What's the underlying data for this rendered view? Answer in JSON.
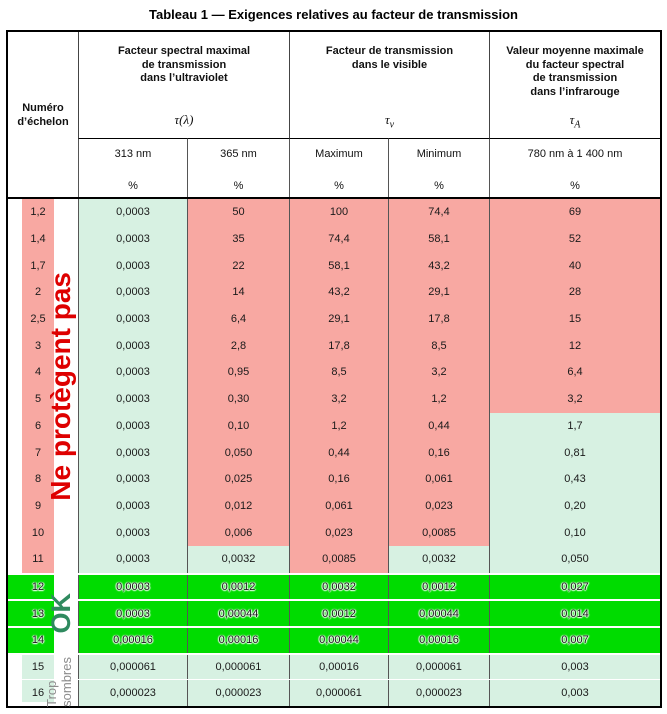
{
  "page": {
    "title": "Tableau 1 — Exigences relatives au facteur de transmission"
  },
  "colors": {
    "pink": "#F8A8A2",
    "mint": "#D7F1E2",
    "green": "#00DC00",
    "warn_text": "#DE0000",
    "ok_text": "#2F8A5F",
    "muted_text": "#8C8C8C"
  },
  "header": {
    "row_label": "Numéro d’échelon",
    "groups": [
      {
        "lines": [
          "Facteur spectral maximal",
          "de transmission",
          "dans l’ultraviolet"
        ],
        "symbol_base": "τ(λ)",
        "symbol_sub": ""
      },
      {
        "lines": [
          "Facteur de transmission",
          "dans le visible"
        ],
        "symbol_base": "τ",
        "symbol_sub": "v"
      },
      {
        "lines": [
          "Valeur moyenne maximale",
          "du facteur spectral",
          "de transmission",
          "dans l’infrarouge"
        ],
        "symbol_base": "τ",
        "symbol_sub": "A"
      }
    ],
    "subcolumns": [
      {
        "label": "313 nm",
        "unit": "%"
      },
      {
        "label": "365 nm",
        "unit": "%"
      },
      {
        "label": "Maximum",
        "unit": "%"
      },
      {
        "label": "Minimum",
        "unit": "%"
      },
      {
        "label": "780 nm à 1 400 nm",
        "unit": "%"
      }
    ]
  },
  "rows": [
    {
      "num": "1,2",
      "values": [
        "0,0003",
        "50",
        "100",
        "74,4",
        "69"
      ],
      "colors": [
        "P",
        "M",
        "P",
        "P",
        "P",
        "P"
      ]
    },
    {
      "num": "1,4",
      "values": [
        "0,0003",
        "35",
        "74,4",
        "58,1",
        "52"
      ],
      "colors": [
        "P",
        "M",
        "P",
        "P",
        "P",
        "P"
      ]
    },
    {
      "num": "1,7",
      "values": [
        "0,0003",
        "22",
        "58,1",
        "43,2",
        "40"
      ],
      "colors": [
        "P",
        "M",
        "P",
        "P",
        "P",
        "P"
      ]
    },
    {
      "num": "2",
      "values": [
        "0,0003",
        "14",
        "43,2",
        "29,1",
        "28"
      ],
      "colors": [
        "P",
        "M",
        "P",
        "P",
        "P",
        "P"
      ]
    },
    {
      "num": "2,5",
      "values": [
        "0,0003",
        "6,4",
        "29,1",
        "17,8",
        "15"
      ],
      "colors": [
        "P",
        "M",
        "P",
        "P",
        "P",
        "P"
      ]
    },
    {
      "num": "3",
      "values": [
        "0,0003",
        "2,8",
        "17,8",
        "8,5",
        "12"
      ],
      "colors": [
        "P",
        "M",
        "P",
        "P",
        "P",
        "P"
      ]
    },
    {
      "num": "4",
      "values": [
        "0,0003",
        "0,95",
        "8,5",
        "3,2",
        "6,4"
      ],
      "colors": [
        "P",
        "M",
        "P",
        "P",
        "P",
        "P"
      ]
    },
    {
      "num": "5",
      "values": [
        "0,0003",
        "0,30",
        "3,2",
        "1,2",
        "3,2"
      ],
      "colors": [
        "P",
        "M",
        "P",
        "P",
        "P",
        "P"
      ]
    },
    {
      "num": "6",
      "values": [
        "0,0003",
        "0,10",
        "1,2",
        "0,44",
        "1,7"
      ],
      "colors": [
        "P",
        "M",
        "P",
        "P",
        "P",
        "M"
      ]
    },
    {
      "num": "7",
      "values": [
        "0,0003",
        "0,050",
        "0,44",
        "0,16",
        "0,81"
      ],
      "colors": [
        "P",
        "M",
        "P",
        "P",
        "P",
        "M"
      ]
    },
    {
      "num": "8",
      "values": [
        "0,0003",
        "0,025",
        "0,16",
        "0,061",
        "0,43"
      ],
      "colors": [
        "P",
        "M",
        "P",
        "P",
        "P",
        "M"
      ]
    },
    {
      "num": "9",
      "values": [
        "0,0003",
        "0,012",
        "0,061",
        "0,023",
        "0,20"
      ],
      "colors": [
        "P",
        "M",
        "P",
        "P",
        "P",
        "M"
      ]
    },
    {
      "num": "10",
      "values": [
        "0,0003",
        "0,006",
        "0,023",
        "0,0085",
        "0,10"
      ],
      "colors": [
        "P",
        "M",
        "P",
        "P",
        "P",
        "M"
      ]
    },
    {
      "num": "11",
      "values": [
        "0,0003",
        "0,0032",
        "0,0085",
        "0,0032",
        "0,050"
      ],
      "colors": [
        "P",
        "M",
        "M",
        "P",
        "M",
        "M"
      ]
    },
    {
      "num": "12",
      "values": [
        "0,0003",
        "0,0012",
        "0,0032",
        "0,0012",
        "0,027"
      ],
      "colors": [
        "G",
        "G",
        "G",
        "G",
        "G",
        "G"
      ]
    },
    {
      "num": "13",
      "values": [
        "0,0003",
        "0,00044",
        "0,0012",
        "0,00044",
        "0,014"
      ],
      "colors": [
        "G",
        "G",
        "G",
        "G",
        "G",
        "G"
      ]
    },
    {
      "num": "14",
      "values": [
        "0,00016",
        "0,00016",
        "0,00044",
        "0,00016",
        "0,007"
      ],
      "colors": [
        "G",
        "G",
        "G",
        "G",
        "G",
        "G"
      ]
    },
    {
      "num": "15",
      "values": [
        "0,000061",
        "0,000061",
        "0,00016",
        "0,000061",
        "0,003"
      ],
      "colors": [
        "M",
        "M",
        "M",
        "M",
        "M",
        "M"
      ]
    },
    {
      "num": "16",
      "values": [
        "0,000023",
        "0,000023",
        "0,000061",
        "0,000023",
        "0,003"
      ],
      "colors": [
        "M",
        "M",
        "M",
        "M",
        "M",
        "M"
      ]
    }
  ],
  "annotations": [
    {
      "id": "not-protective",
      "text": "Ne protègent pas"
    },
    {
      "id": "ok",
      "text": "OK"
    },
    {
      "id": "too-dark",
      "lines": [
        "Trop",
        "sombres"
      ]
    }
  ]
}
